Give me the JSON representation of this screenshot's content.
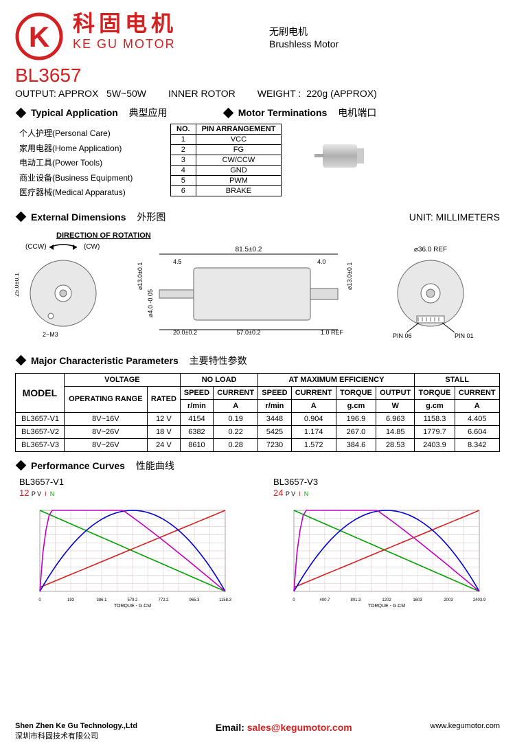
{
  "brand": {
    "cn": "科固电机",
    "en": "KE GU MOTOR",
    "logo_letter": "K",
    "logo_color": "#d32020"
  },
  "product_type": {
    "cn": "无刷电机",
    "en": "Brushless Motor"
  },
  "model": "BL3657",
  "specs": {
    "output_label": "OUTPUT: APPROX",
    "output_value": "5W~50W",
    "rotor": "INNER   ROTOR",
    "weight_label": "WEIGHT :",
    "weight_value": "220g (APPROX)"
  },
  "sec_app": {
    "en": "Typical  Application",
    "cn": "典型应用"
  },
  "sec_term": {
    "en": "Motor Terminations",
    "cn": "电机端口"
  },
  "sec_dim": {
    "en": "External  Dimensions",
    "cn": "外形图"
  },
  "sec_char": {
    "en": "Major  Characteristic Parameters",
    "cn": "主要特性参数"
  },
  "sec_curve": {
    "en": "Performance Curves",
    "cn": "性能曲线"
  },
  "applications": [
    "个人护理(Personal Care)",
    "家用电器(Home Application)",
    "电动工具(Power Tools)",
    "商业设备(Business Equipment)",
    "医疗器械(Medical Apparatus)"
  ],
  "pin_header": {
    "no": "NO.",
    "arr": "PIN  ARRANGEMENT"
  },
  "pins": [
    {
      "no": "1",
      "arr": "VCC"
    },
    {
      "no": "2",
      "arr": "FG"
    },
    {
      "no": "3",
      "arr": "CW/CCW"
    },
    {
      "no": "4",
      "arr": "GND"
    },
    {
      "no": "5",
      "arr": "PWM"
    },
    {
      "no": "6",
      "arr": "BRAKE"
    }
  ],
  "unit_label": "UNIT: MILLIMETERS",
  "rotation_label": "DIRECTION  OF  ROTATION",
  "rot_ccw": "(CCW)",
  "rot_cw": "(CW)",
  "dims": {
    "total_len": "81.5±0.2",
    "shaft_left": "4.5",
    "shaft_right": "4.0",
    "dia_left": "⌀13.0±0.1",
    "dia_right": "⌀13.0±0.1",
    "shaft_dia": "⌀4.0 -0.05",
    "front_len": "20.0±0.2",
    "body_len": "57.0±0.2",
    "ref_1": "1.0 REF",
    "end_dia": "⌀36.0 REF",
    "circle_offset": "25.0±0.1",
    "mount": "2~M3",
    "pin06": "PIN 06",
    "pin01": "PIN 01"
  },
  "char_headers": {
    "model": "MODEL",
    "voltage": "VOLTAGE",
    "noload": "NO   LOAD",
    "maxeff": "AT  MAXIMUM  EFFICIENCY",
    "stall": "STALL",
    "oprange": "OPERATING RANGE",
    "rated": "RATED",
    "speed": "SPEED",
    "current": "CURRENT",
    "torque": "TORQUE",
    "output": "OUTPUT",
    "rpm": "r/min",
    "amp": "A",
    "gcm": "g.cm",
    "watt": "W"
  },
  "char_rows": [
    {
      "model": "BL3657-V1",
      "range": "8V~16V",
      "rated": "12 V",
      "nl_spd": "4154",
      "nl_cur": "0.19",
      "me_spd": "3448",
      "me_cur": "0.904",
      "me_trq": "196.9",
      "me_out": "6.963",
      "st_trq": "1158.3",
      "st_cur": "4.405"
    },
    {
      "model": "BL3657-V2",
      "range": "8V~26V",
      "rated": "18 V",
      "nl_spd": "6382",
      "nl_cur": "0.22",
      "me_spd": "5425",
      "me_cur": "1.174",
      "me_trq": "267.0",
      "me_out": "14.85",
      "st_trq": "1779.7",
      "st_cur": "6.604"
    },
    {
      "model": "BL3657-V3",
      "range": "8V~26V",
      "rated": "24 V",
      "nl_spd": "8610",
      "nl_cur": "0.28",
      "me_spd": "7230",
      "me_cur": "1.572",
      "me_trq": "384.6",
      "me_out": "28.53",
      "st_trq": "2403.9",
      "st_cur": "8.342"
    }
  ],
  "curves": [
    {
      "model": "BL3657-V1",
      "volt": "12",
      "xmax": "1158.3",
      "colors": {
        "speed": "#00a000",
        "current": "#d32020",
        "output": "#0000d0",
        "eff": "#c000c0",
        "grid": "#d8bcbc",
        "bg": "#ffffff"
      },
      "xlabel": "TORQUE - G.CM",
      "xticks": [
        "0",
        "193",
        "386.1",
        "579.2",
        "772.2",
        "965.3",
        "1158.3"
      ]
    },
    {
      "model": "BL3657-V3",
      "volt": "24",
      "xmax": "2403.9",
      "colors": {
        "speed": "#00a000",
        "current": "#d32020",
        "output": "#0000d0",
        "eff": "#c000c0",
        "grid": "#d8bcbc",
        "bg": "#ffffff"
      },
      "xlabel": "TORQUE - G.CM",
      "xticks": [
        "0",
        "400.7",
        "801.3",
        "1202",
        "1603",
        "2003",
        "2403.9"
      ]
    }
  ],
  "curve_legend": {
    "p": "P",
    "v": "V",
    "i": "I",
    "n": "N"
  },
  "footer": {
    "company_en": "Shen Zhen Ke Gu Technology.,Ltd",
    "company_cn": "深圳市科固技术有限公司",
    "email_label": "Email:",
    "email": "sales@kegumotor.com",
    "site": "www.kegumotor.com"
  }
}
